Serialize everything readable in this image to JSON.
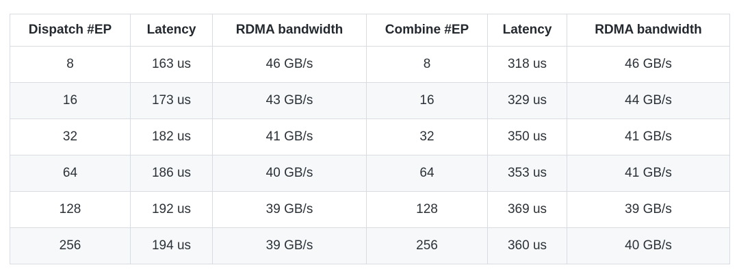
{
  "table": {
    "name": "ep-benchmark-table",
    "columns": [
      {
        "label": "Dispatch #EP"
      },
      {
        "label": "Latency"
      },
      {
        "label": "RDMA bandwidth"
      },
      {
        "label": "Combine #EP"
      },
      {
        "label": "Latency"
      },
      {
        "label": "RDMA bandwidth"
      }
    ],
    "rows": [
      [
        "8",
        "163 us",
        "46 GB/s",
        "8",
        "318 us",
        "46 GB/s"
      ],
      [
        "16",
        "173 us",
        "43 GB/s",
        "16",
        "329 us",
        "44 GB/s"
      ],
      [
        "32",
        "182 us",
        "41 GB/s",
        "32",
        "350 us",
        "41 GB/s"
      ],
      [
        "64",
        "186 us",
        "40 GB/s",
        "64",
        "353 us",
        "41 GB/s"
      ],
      [
        "128",
        "192 us",
        "39 GB/s",
        "128",
        "369 us",
        "39 GB/s"
      ],
      [
        "256",
        "194 us",
        "39 GB/s",
        "256",
        "360 us",
        "40 GB/s"
      ]
    ],
    "colors": {
      "border": "#d8dce0",
      "zebra_row": "#f6f8fa",
      "text": "#2b3137",
      "header_text": "#24292f",
      "background": "#ffffff"
    }
  },
  "chart_data": {
    "type": "table",
    "title": "",
    "columns": [
      "Dispatch #EP",
      "Latency",
      "RDMA bandwidth",
      "Combine #EP",
      "Latency",
      "RDMA bandwidth"
    ],
    "rows": [
      [
        "8",
        "163 us",
        "46 GB/s",
        "8",
        "318 us",
        "46 GB/s"
      ],
      [
        "16",
        "173 us",
        "43 GB/s",
        "16",
        "329 us",
        "44 GB/s"
      ],
      [
        "32",
        "182 us",
        "41 GB/s",
        "32",
        "350 us",
        "41 GB/s"
      ],
      [
        "64",
        "186 us",
        "40 GB/s",
        "64",
        "353 us",
        "41 GB/s"
      ],
      [
        "128",
        "192 us",
        "39 GB/s",
        "128",
        "369 us",
        "39 GB/s"
      ],
      [
        "256",
        "194 us",
        "39 GB/s",
        "256",
        "360 us",
        "40 GB/s"
      ]
    ],
    "series": [
      {
        "name": "Dispatch latency (us)",
        "x": [
          8,
          16,
          32,
          64,
          128,
          256
        ],
        "values": [
          163,
          173,
          182,
          186,
          192,
          194
        ]
      },
      {
        "name": "Dispatch RDMA bandwidth (GB/s)",
        "x": [
          8,
          16,
          32,
          64,
          128,
          256
        ],
        "values": [
          46,
          43,
          41,
          40,
          39,
          39
        ]
      },
      {
        "name": "Combine latency (us)",
        "x": [
          8,
          16,
          32,
          64,
          128,
          256
        ],
        "values": [
          318,
          329,
          350,
          353,
          369,
          360
        ]
      },
      {
        "name": "Combine RDMA bandwidth (GB/s)",
        "x": [
          8,
          16,
          32,
          64,
          128,
          256
        ],
        "values": [
          46,
          44,
          41,
          41,
          39,
          40
        ]
      }
    ]
  }
}
